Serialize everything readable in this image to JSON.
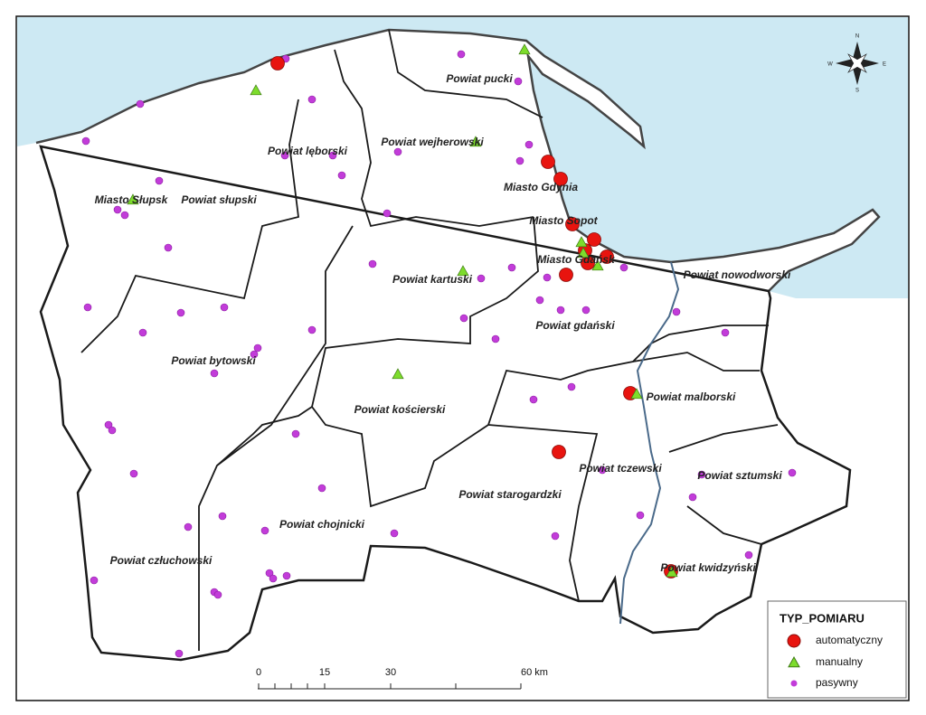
{
  "map": {
    "regions": [
      "Powiat pucki",
      "Powiat lęborski",
      "Powiat wejherowski",
      "Miasto Gdynia",
      "Miasto Słupsk",
      "Powiat słupski",
      "Miasto Sopot",
      "Miasto Gdańsk",
      "Powiat kartuski",
      "Powiat nowodworski",
      "Powiat gdański",
      "Powiat bytowski",
      "Powiat malborski",
      "Powiat kościerski",
      "Powiat tczewski",
      "Powiat sztumski",
      "Powiat starogardzki",
      "Powiat chojnicki",
      "Powiat człuchowski",
      "Powiat kwidzyński"
    ],
    "legend": {
      "title": "TYP_POMIARU",
      "items": [
        "automatyczny",
        "manualny",
        "pasywny"
      ]
    },
    "scale_bar": [
      "0",
      "15",
      "30",
      "60 km"
    ],
    "compass": [
      "N",
      "E",
      "S",
      "W"
    ]
  }
}
